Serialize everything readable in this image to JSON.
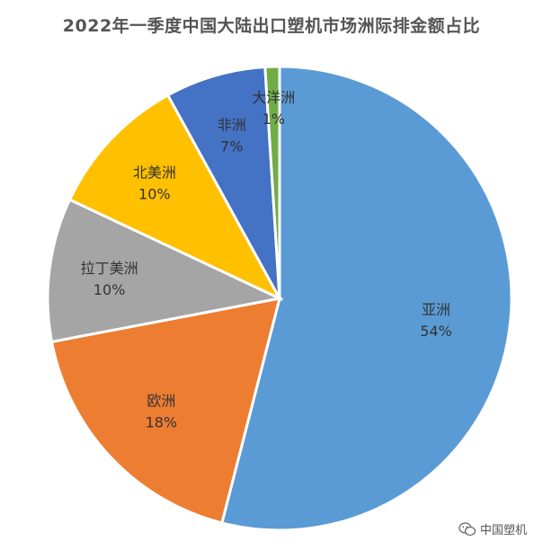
{
  "chart_data": {
    "type": "pie",
    "title": "2022年一季度中国大陆出口塑机市场洲际排金额占比",
    "start_angle_deg": 0,
    "direction": "clockwise",
    "slices": [
      {
        "label": "亚洲",
        "value": 54,
        "pct_label": "54%",
        "color": "#5B9BD5",
        "label_color": "#333333"
      },
      {
        "label": "欧洲",
        "value": 18,
        "pct_label": "18%",
        "color": "#ED7D31",
        "label_color": "#333333"
      },
      {
        "label": "拉丁美洲",
        "value": 10,
        "pct_label": "10%",
        "color": "#A5A5A5",
        "label_color": "#333333"
      },
      {
        "label": "北美洲",
        "value": 10,
        "pct_label": "10%",
        "color": "#FFC000",
        "label_color": "#333333"
      },
      {
        "label": "非洲",
        "value": 7,
        "pct_label": "7%",
        "color": "#4472C4",
        "label_color": "#333333"
      },
      {
        "label": "大洋洲",
        "value": 1,
        "pct_label": "1%",
        "color": "#70AD47",
        "label_color": "#333333"
      }
    ]
  },
  "watermark": {
    "text": "中国塑机",
    "icon": "wechat-icon"
  }
}
